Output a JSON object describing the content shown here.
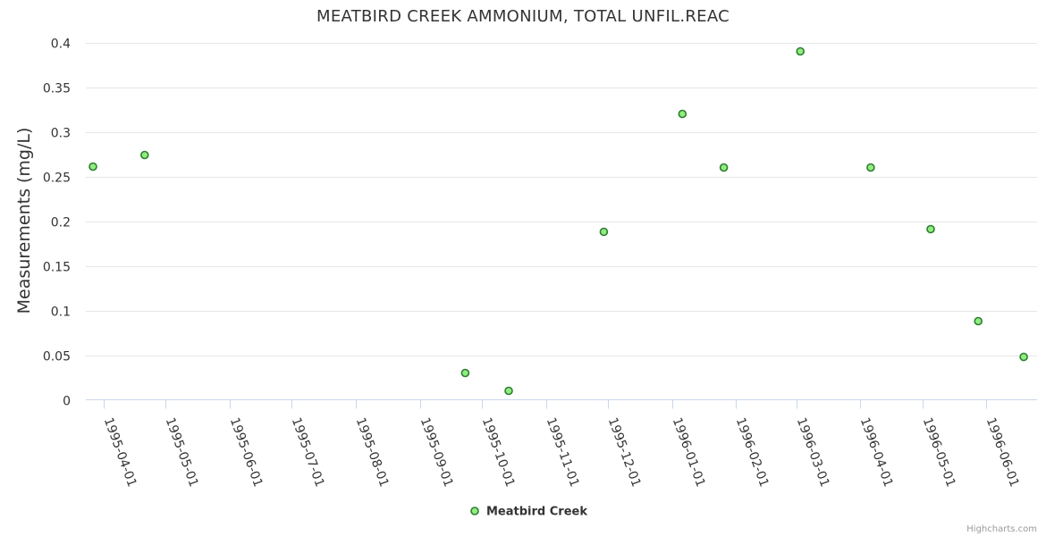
{
  "chart_data": {
    "type": "scatter",
    "title": "MEATBIRD CREEK AMMONIUM, TOTAL UNFIL.REAC",
    "xlabel": "",
    "ylabel": "Measurements (mg/L)",
    "ylim": [
      0,
      0.4
    ],
    "yticks": [
      "0",
      "0.05",
      "0.1",
      "0.15",
      "0.2",
      "0.25",
      "0.3",
      "0.35",
      "0.4"
    ],
    "xticks": [
      "1995-04-01",
      "1995-05-01",
      "1995-06-01",
      "1995-07-01",
      "1995-08-01",
      "1995-09-01",
      "1995-10-01",
      "1995-11-01",
      "1995-12-01",
      "1996-01-01",
      "1996-02-01",
      "1996-03-01",
      "1996-04-01",
      "1996-05-01",
      "1996-06-01"
    ],
    "xlim": [
      "1995-03-27",
      "1996-06-22"
    ],
    "grid": true,
    "legend_position": "bottom-center",
    "series": [
      {
        "name": "Meatbird Creek",
        "color": "#90ed7d",
        "edge_color": "#2e7d32",
        "points": [
          {
            "x": "1995-03-27",
            "y": 0.261
          },
          {
            "x": "1995-04-21",
            "y": 0.274
          },
          {
            "x": "1995-09-23",
            "y": 0.03
          },
          {
            "x": "1995-10-14",
            "y": 0.01
          },
          {
            "x": "1995-11-29",
            "y": 0.188
          },
          {
            "x": "1996-01-06",
            "y": 0.32
          },
          {
            "x": "1996-01-26",
            "y": 0.26
          },
          {
            "x": "1996-03-03",
            "y": 0.39
          },
          {
            "x": "1996-04-06",
            "y": 0.26
          },
          {
            "x": "1996-05-05",
            "y": 0.191
          },
          {
            "x": "1996-05-28",
            "y": 0.088
          },
          {
            "x": "1996-06-19",
            "y": 0.048
          }
        ]
      }
    ]
  },
  "credits": "Highcharts.com"
}
